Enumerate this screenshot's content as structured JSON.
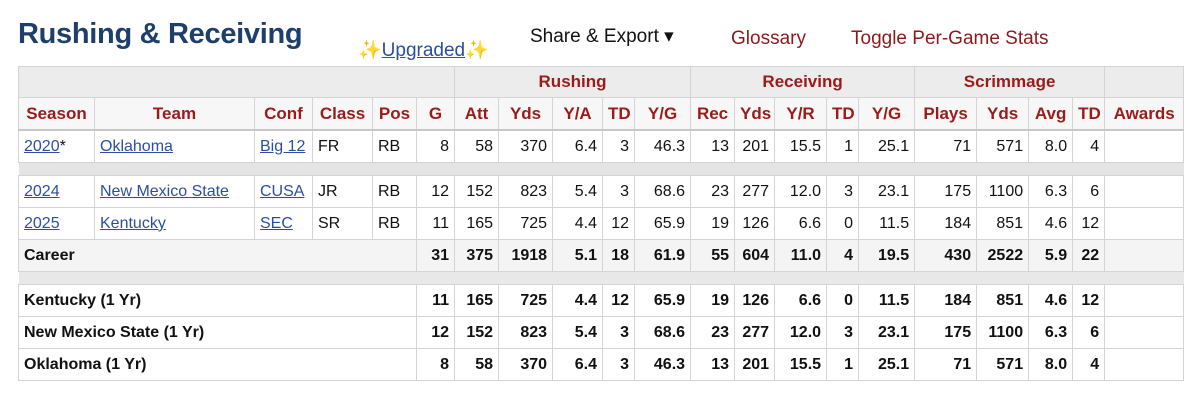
{
  "header": {
    "title": "Rushing & Receiving",
    "sparkle": "✨",
    "upgraded": "Upgraded",
    "share_export": "Share & Export ▾",
    "glossary": "Glossary",
    "toggle": "Toggle Per-Game Stats"
  },
  "groups": [
    "Rushing",
    "Receiving",
    "Scrimmage"
  ],
  "columns": [
    "Season",
    "Team",
    "Conf",
    "Class",
    "Pos",
    "G",
    "Att",
    "Yds",
    "Y/A",
    "TD",
    "Y/G",
    "Rec",
    "Yds",
    "Y/R",
    "TD",
    "Y/G",
    "Plays",
    "Yds",
    "Avg",
    "TD",
    "Awards"
  ],
  "seasons": [
    {
      "season": "2020",
      "mark": "*",
      "team": "Oklahoma",
      "conf": "Big 12",
      "class": "FR",
      "pos": "RB",
      "g": "8",
      "stats": [
        "58",
        "370",
        "6.4",
        "3",
        "46.3",
        "13",
        "201",
        "15.5",
        "1",
        "25.1",
        "71",
        "571",
        "8.0",
        "4"
      ],
      "awards": ""
    },
    {
      "season": "2024",
      "mark": "",
      "team": "New Mexico State",
      "conf": "CUSA",
      "class": "JR",
      "pos": "RB",
      "g": "12",
      "stats": [
        "152",
        "823",
        "5.4",
        "3",
        "68.6",
        "23",
        "277",
        "12.0",
        "3",
        "23.1",
        "175",
        "1100",
        "6.3",
        "6"
      ],
      "awards": ""
    },
    {
      "season": "2025",
      "mark": "",
      "team": "Kentucky",
      "conf": "SEC",
      "class": "SR",
      "pos": "RB",
      "g": "11",
      "stats": [
        "165",
        "725",
        "4.4",
        "12",
        "65.9",
        "19",
        "126",
        "6.6",
        "0",
        "11.5",
        "184",
        "851",
        "4.6",
        "12"
      ],
      "awards": ""
    }
  ],
  "career": {
    "label": "Career",
    "g": "31",
    "stats": [
      "375",
      "1918",
      "5.1",
      "18",
      "61.9",
      "55",
      "604",
      "11.0",
      "4",
      "19.5",
      "430",
      "2522",
      "5.9",
      "22"
    ]
  },
  "teams": [
    {
      "label": "Kentucky (1 Yr)",
      "g": "11",
      "stats": [
        "165",
        "725",
        "4.4",
        "12",
        "65.9",
        "19",
        "126",
        "6.6",
        "0",
        "11.5",
        "184",
        "851",
        "4.6",
        "12"
      ]
    },
    {
      "label": "New Mexico State (1 Yr)",
      "g": "12",
      "stats": [
        "152",
        "823",
        "5.4",
        "3",
        "68.6",
        "23",
        "277",
        "12.0",
        "3",
        "23.1",
        "175",
        "1100",
        "6.3",
        "6"
      ]
    },
    {
      "label": "Oklahoma (1 Yr)",
      "g": "8",
      "stats": [
        "58",
        "370",
        "6.4",
        "3",
        "46.3",
        "13",
        "201",
        "15.5",
        "1",
        "25.1",
        "71",
        "571",
        "8.0",
        "4"
      ]
    }
  ]
}
